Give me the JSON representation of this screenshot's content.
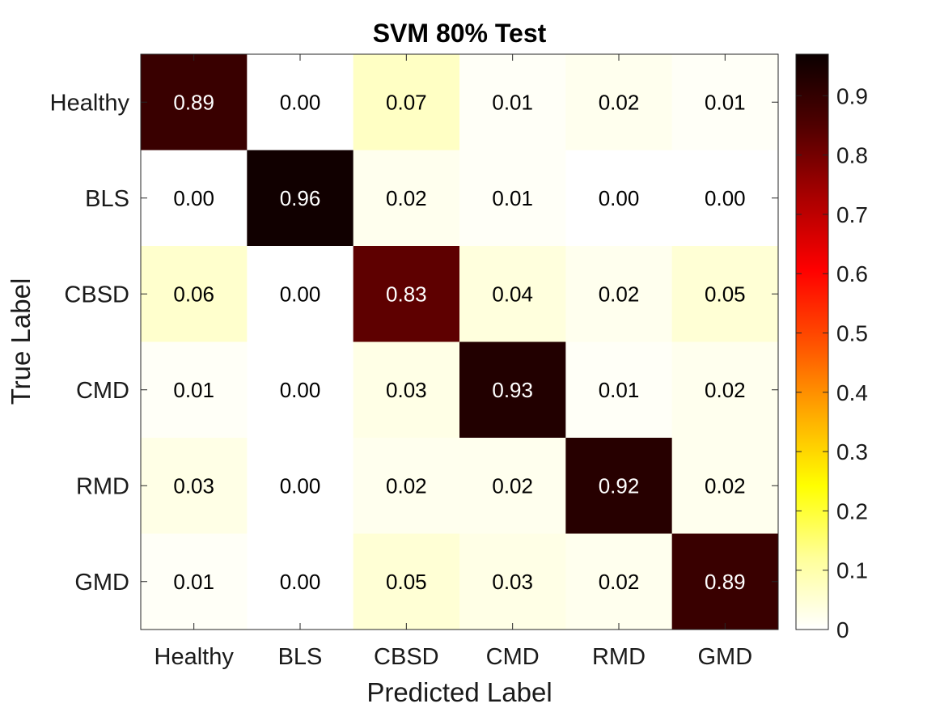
{
  "chart_data": {
    "type": "heatmap",
    "title": "SVM 80% Test",
    "xlabel": "Predicted Label",
    "ylabel": "True Label",
    "x_categories": [
      "Healthy",
      "BLS",
      "CBSD",
      "CMD",
      "RMD",
      "GMD"
    ],
    "y_categories": [
      "Healthy",
      "BLS",
      "CBSD",
      "CMD",
      "RMD",
      "GMD"
    ],
    "values": [
      [
        0.89,
        0.0,
        0.07,
        0.01,
        0.02,
        0.01
      ],
      [
        0.0,
        0.96,
        0.02,
        0.01,
        0.0,
        0.0
      ],
      [
        0.06,
        0.0,
        0.83,
        0.04,
        0.02,
        0.05
      ],
      [
        0.01,
        0.0,
        0.03,
        0.93,
        0.01,
        0.02
      ],
      [
        0.03,
        0.0,
        0.02,
        0.02,
        0.92,
        0.02
      ],
      [
        0.01,
        0.0,
        0.05,
        0.03,
        0.02,
        0.89
      ]
    ],
    "cell_labels": [
      [
        "0.89",
        "0.00",
        "0.07",
        "0.01",
        "0.02",
        "0.01"
      ],
      [
        "0.00",
        "0.96",
        "0.02",
        "0.01",
        "0.00",
        "0.00"
      ],
      [
        "0.06",
        "0.00",
        "0.83",
        "0.04",
        "0.02",
        "0.05"
      ],
      [
        "0.01",
        "0.00",
        "0.03",
        "0.93",
        "0.01",
        "0.02"
      ],
      [
        "0.03",
        "0.00",
        "0.02",
        "0.02",
        "0.92",
        "0.02"
      ],
      [
        "0.01",
        "0.00",
        "0.05",
        "0.03",
        "0.02",
        "0.89"
      ]
    ],
    "colormap": "hot-reversed",
    "colorbar": {
      "range": [
        0,
        0.97
      ],
      "ticks": [
        0,
        0.1,
        0.2,
        0.3,
        0.4,
        0.5,
        0.6,
        0.7,
        0.8,
        0.9
      ],
      "tick_labels": [
        "0",
        "0.1",
        "0.2",
        "0.3",
        "0.4",
        "0.5",
        "0.6",
        "0.7",
        "0.8",
        "0.9"
      ]
    },
    "grid": false,
    "legend": "colorbar-right"
  }
}
